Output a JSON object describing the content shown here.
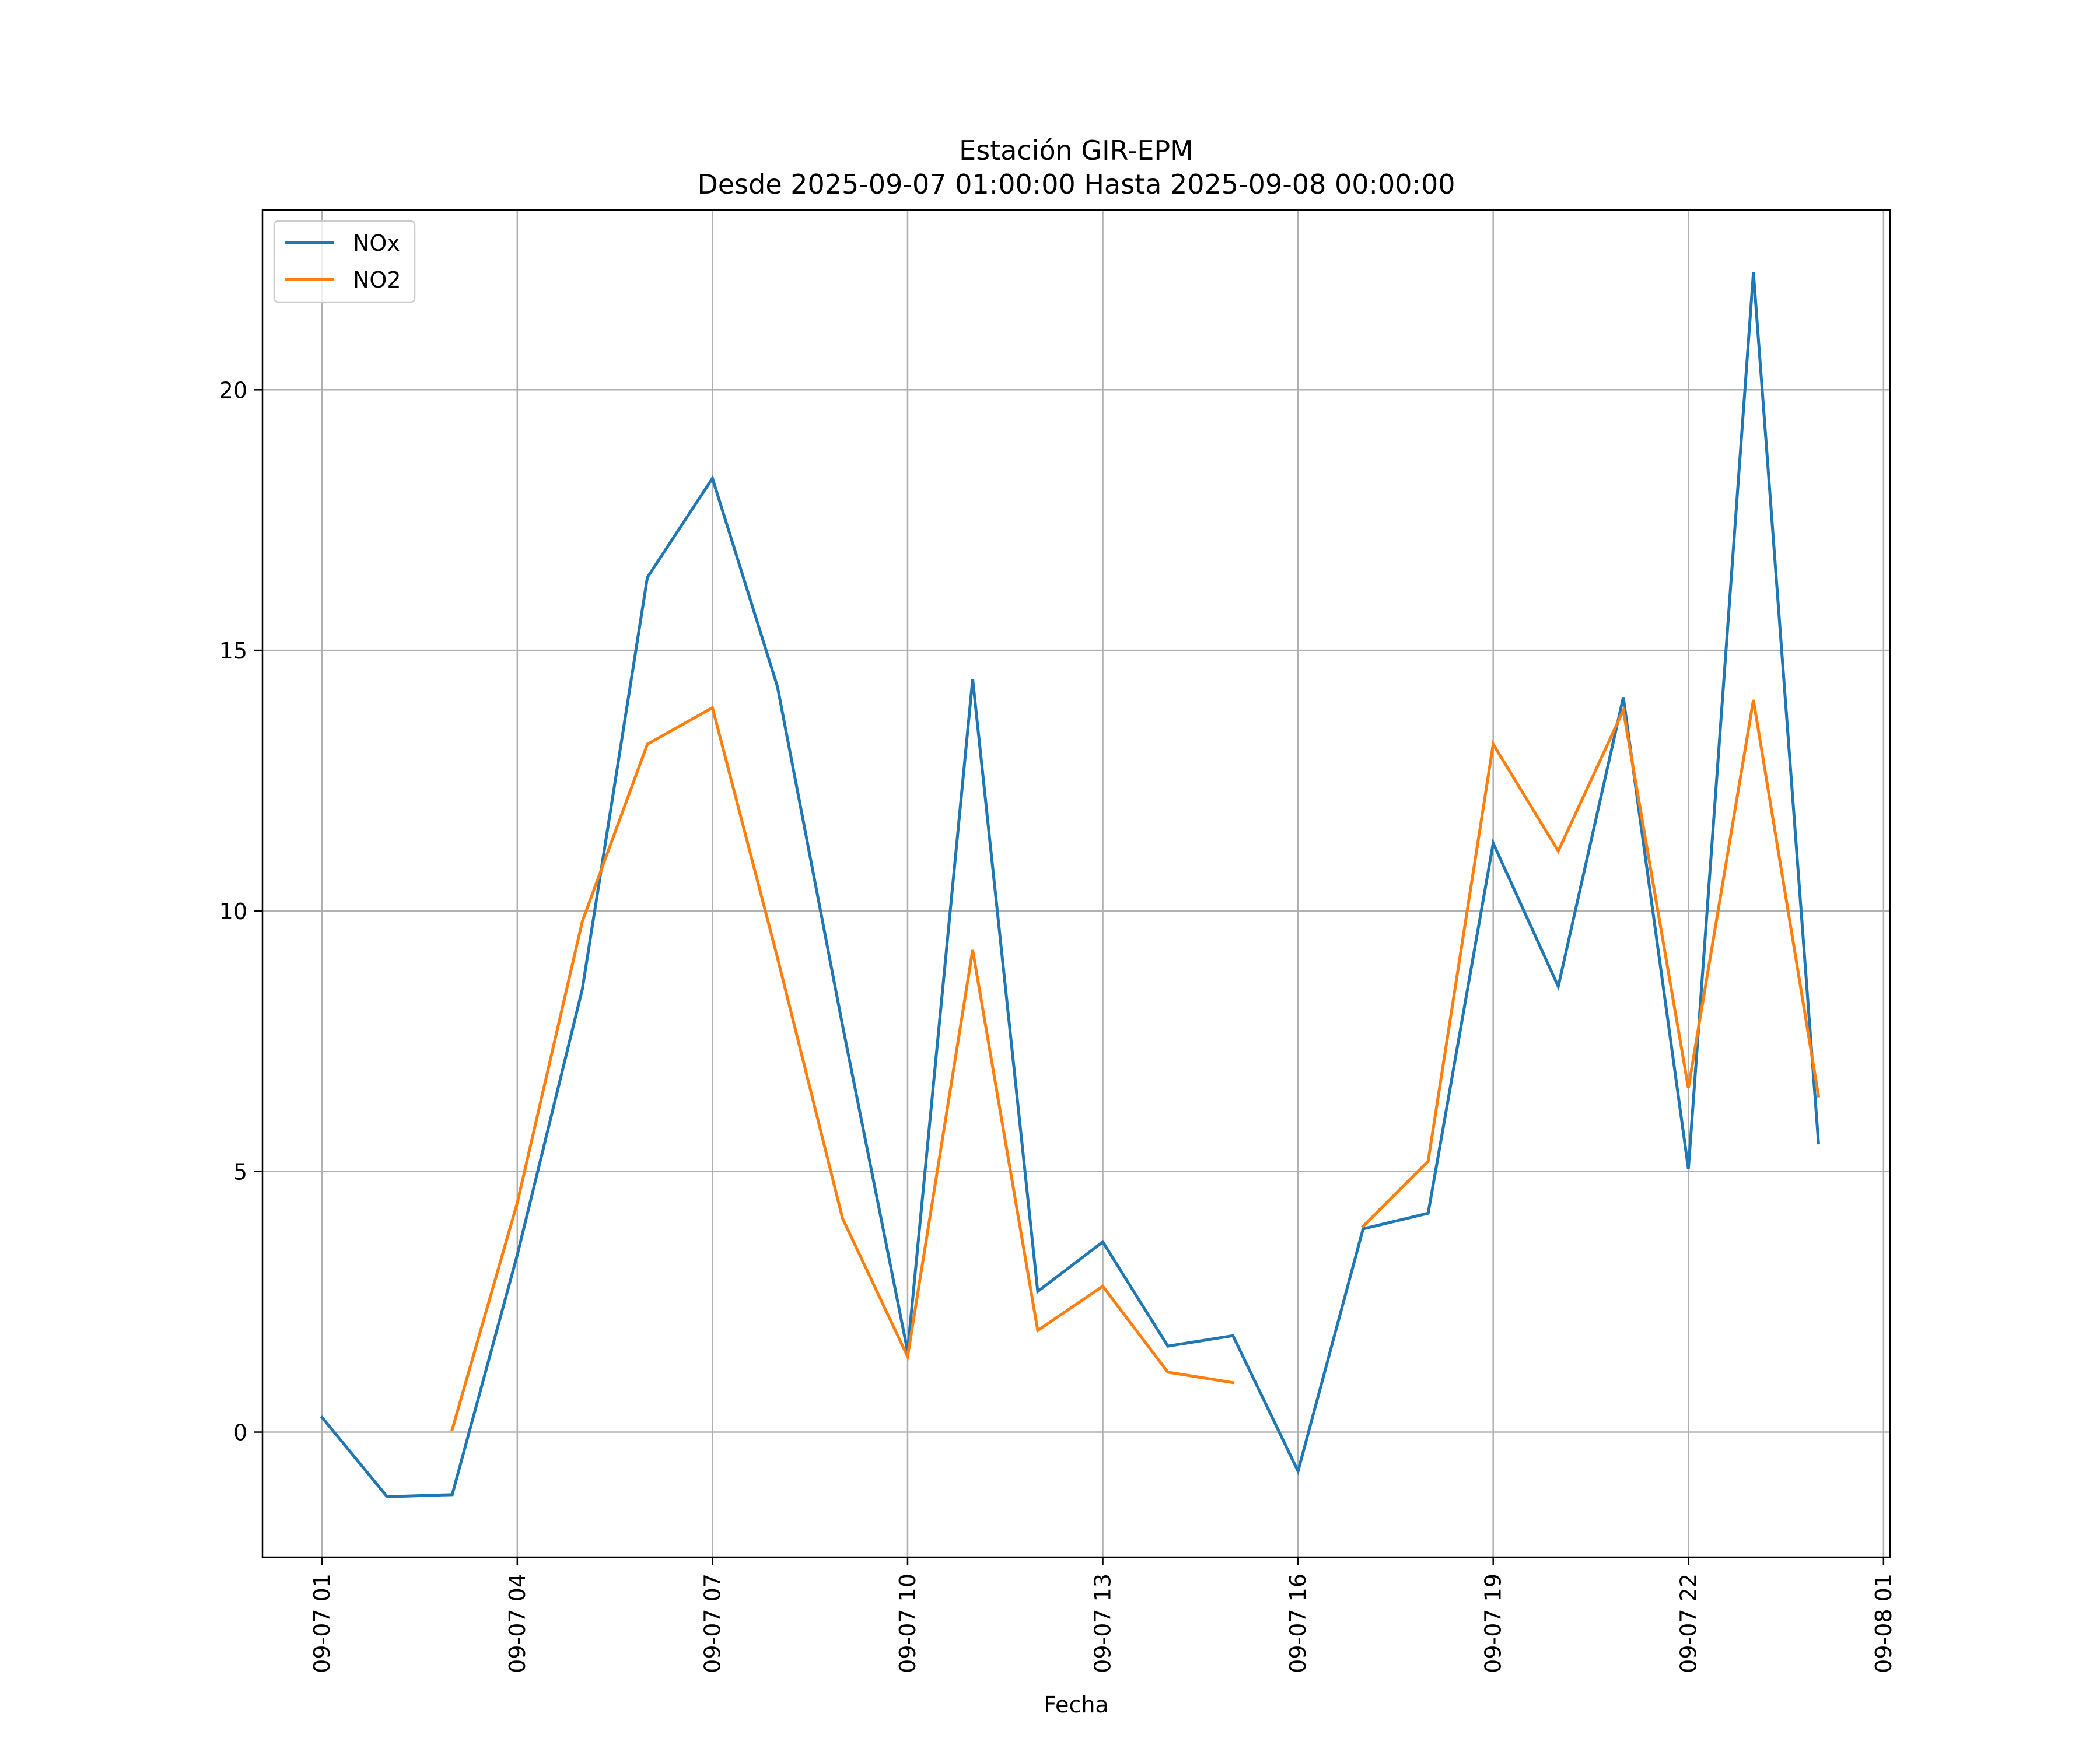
{
  "chart_data": {
    "type": "line",
    "title": "Estación GIR-EPM",
    "subtitle": "Desde 2025-09-07 01:00:00 Hasta 2025-09-08 00:00:00",
    "xlabel": "Fecha",
    "ylabel": "",
    "x": [
      "09-07 01:00",
      "09-07 02:00",
      "09-07 03:00",
      "09-07 04:00",
      "09-07 05:00",
      "09-07 06:00",
      "09-07 07:00",
      "09-07 08:00",
      "09-07 09:00",
      "09-07 10:00",
      "09-07 11:00",
      "09-07 12:00",
      "09-07 13:00",
      "09-07 14:00",
      "09-07 15:00",
      "09-07 16:00",
      "09-07 17:00",
      "09-07 18:00",
      "09-07 19:00",
      "09-07 20:00",
      "09-07 21:00",
      "09-07 22:00",
      "09-07 23:00",
      "09-08 00:00"
    ],
    "x_tick_labels": [
      "09-07 01",
      "09-07 04",
      "09-07 07",
      "09-07 10",
      "09-07 13",
      "09-07 16",
      "09-07 19",
      "09-07 22",
      "09-08 01"
    ],
    "y_ticks": [
      0,
      5,
      10,
      15,
      20
    ],
    "ylim": [
      -2.4,
      23.45
    ],
    "xlim": [
      "09-07 00:05",
      "09-08 01:06"
    ],
    "grid": true,
    "legend_position": "upper left",
    "series": [
      {
        "name": "NOx",
        "color": "#1f77b4",
        "values": [
          0.28,
          -1.24,
          -1.2,
          3.4,
          8.5,
          16.4,
          18.3,
          14.3,
          7.8,
          1.55,
          14.45,
          2.7,
          3.65,
          1.65,
          1.85,
          -0.75,
          3.9,
          4.2,
          11.3,
          8.55,
          14.1,
          5.05,
          22.25,
          5.55
        ]
      },
      {
        "name": "NO2",
        "color": "#ff7f0e",
        "values": [
          null,
          null,
          0.05,
          4.4,
          9.8,
          13.2,
          13.9,
          9.1,
          4.1,
          1.45,
          9.25,
          1.95,
          2.8,
          1.15,
          0.95,
          null,
          3.95,
          5.2,
          13.2,
          11.15,
          13.85,
          6.6,
          14.05,
          6.45
        ]
      }
    ]
  }
}
